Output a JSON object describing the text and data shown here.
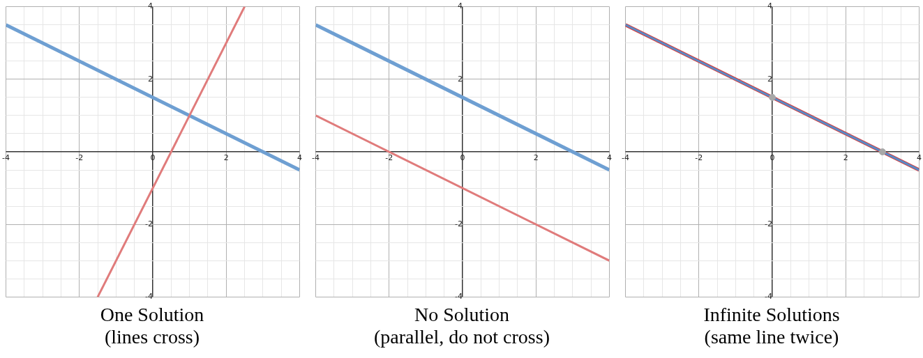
{
  "chart_data": [
    {
      "type": "line",
      "title": "One Solution",
      "subtitle": "(lines cross)",
      "xlim": [
        -4,
        4
      ],
      "ylim": [
        -4,
        4
      ],
      "grid": true,
      "legend": false,
      "marker": "none",
      "xticks": [
        -4,
        {
          "value": -3.5,
          "label": null
        },
        {
          "value": -3,
          "label": null
        },
        {
          "value": -2.5,
          "label": null
        },
        -2,
        {
          "value": -1.5,
          "label": null
        },
        {
          "value": -1,
          "label": null
        },
        {
          "value": -0.5,
          "label": null
        },
        0,
        {
          "value": 0.5,
          "label": null
        },
        {
          "value": 1,
          "label": null
        },
        {
          "value": 1.5,
          "label": null
        },
        2,
        {
          "value": 2.5,
          "label": null
        },
        {
          "value": 3,
          "label": null
        },
        {
          "value": 3.5,
          "label": null
        },
        4
      ],
      "yticks": [
        -4,
        {
          "value": -3.5,
          "label": null
        },
        {
          "value": -3,
          "label": null
        },
        {
          "value": -2.5,
          "label": null
        },
        -2,
        {
          "value": -1.5,
          "label": null
        },
        {
          "value": -1,
          "label": null
        },
        {
          "value": -0.5,
          "label": null
        },
        {
          "value": 0,
          "label": null
        },
        {
          "value": 0.5,
          "label": null
        },
        {
          "value": 1,
          "label": null
        },
        {
          "value": 1.5,
          "label": null
        },
        2,
        {
          "value": 2.5,
          "label": null
        },
        {
          "value": 3,
          "label": null
        },
        {
          "value": 3.5,
          "label": null
        },
        4
      ],
      "series": [
        {
          "color": "#6e9fd2",
          "x": [
            -4,
            4
          ],
          "values": [
            3.5,
            -0.5
          ]
        },
        {
          "color": "#e07b7b",
          "x": [
            -1.5,
            2.5
          ],
          "values": [
            -4,
            4
          ]
        }
      ]
    },
    {
      "type": "line",
      "title": "No Solution",
      "subtitle": "(parallel, do not cross)",
      "xlim": [
        -4,
        4
      ],
      "ylim": [
        -4,
        4
      ],
      "grid": true,
      "legend": false,
      "marker": "none",
      "xticks": [
        -4,
        {
          "value": -3.5,
          "label": null
        },
        {
          "value": -3,
          "label": null
        },
        {
          "value": -2.5,
          "label": null
        },
        -2,
        {
          "value": -1.5,
          "label": null
        },
        {
          "value": -1,
          "label": null
        },
        {
          "value": -0.5,
          "label": null
        },
        0,
        {
          "value": 0.5,
          "label": null
        },
        {
          "value": 1,
          "label": null
        },
        {
          "value": 1.5,
          "label": null
        },
        2,
        {
          "value": 2.5,
          "label": null
        },
        {
          "value": 3,
          "label": null
        },
        {
          "value": 3.5,
          "label": null
        },
        4
      ],
      "yticks": [
        -4,
        {
          "value": -3.5,
          "label": null
        },
        {
          "value": -3,
          "label": null
        },
        {
          "value": -2.5,
          "label": null
        },
        -2,
        {
          "value": -1.5,
          "label": null
        },
        {
          "value": -1,
          "label": null
        },
        {
          "value": -0.5,
          "label": null
        },
        {
          "value": 0,
          "label": null
        },
        {
          "value": 0.5,
          "label": null
        },
        {
          "value": 1,
          "label": null
        },
        {
          "value": 1.5,
          "label": null
        },
        2,
        {
          "value": 2.5,
          "label": null
        },
        {
          "value": 3,
          "label": null
        },
        {
          "value": 3.5,
          "label": null
        },
        4
      ],
      "series": [
        {
          "color": "#6e9fd2",
          "x": [
            -4,
            4
          ],
          "values": [
            3.5,
            -0.5
          ]
        },
        {
          "color": "#e07b7b",
          "x": [
            -4,
            4
          ],
          "values": [
            1,
            -3
          ]
        }
      ]
    },
    {
      "type": "line",
      "title": "Infinite Solutions",
      "subtitle": "(same line twice)",
      "xlim": [
        -4,
        4
      ],
      "ylim": [
        -4,
        4
      ],
      "grid": true,
      "legend": false,
      "xticks": [
        -4,
        {
          "value": -3.5,
          "label": null
        },
        {
          "value": -3,
          "label": null
        },
        {
          "value": -2.5,
          "label": null
        },
        -2,
        {
          "value": -1.5,
          "label": null
        },
        {
          "value": -1,
          "label": null
        },
        {
          "value": -0.5,
          "label": null
        },
        0,
        {
          "value": 0.5,
          "label": null
        },
        {
          "value": 1,
          "label": null
        },
        {
          "value": 1.5,
          "label": null
        },
        2,
        {
          "value": 2.5,
          "label": null
        },
        {
          "value": 3,
          "label": null
        },
        {
          "value": 3.5,
          "label": null
        },
        4
      ],
      "yticks": [
        -4,
        {
          "value": -3.5,
          "label": null
        },
        {
          "value": -3,
          "label": null
        },
        {
          "value": -2.5,
          "label": null
        },
        -2,
        {
          "value": -1.5,
          "label": null
        },
        {
          "value": -1,
          "label": null
        },
        {
          "value": -0.5,
          "label": null
        },
        {
          "value": 0,
          "label": null
        },
        {
          "value": 0.5,
          "label": null
        },
        {
          "value": 1,
          "label": null
        },
        {
          "value": 1.5,
          "label": null
        },
        2,
        {
          "value": 2.5,
          "label": null
        },
        {
          "value": 3,
          "label": null
        },
        {
          "value": 3.5,
          "label": null
        },
        4
      ],
      "series": [
        {
          "color": "#d63a3a",
          "marker": "none",
          "x": [
            -4,
            4
          ],
          "values": [
            3.5,
            -0.5
          ]
        },
        {
          "color": "#5a8ac6",
          "marker": "none",
          "x": [
            -4,
            4
          ],
          "values": [
            3.5,
            -0.5
          ]
        },
        {
          "type": "scatter",
          "color": "#a8a8a8",
          "marker": "circle",
          "x": [
            0,
            3
          ],
          "values": [
            1.5,
            0
          ]
        }
      ]
    }
  ]
}
